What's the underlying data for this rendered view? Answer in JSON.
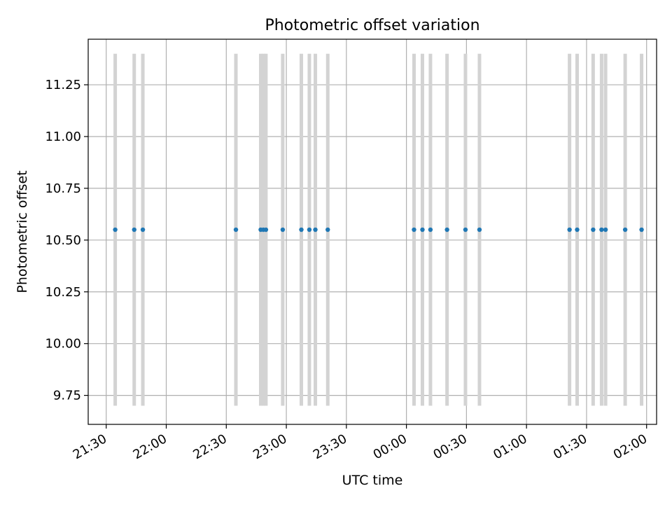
{
  "chart_data": {
    "type": "scatter",
    "title": "Photometric offset variation",
    "xlabel": "UTC time",
    "ylabel": "Photometric offset",
    "x_start": "21:21",
    "x_end": "02:05",
    "xlim": [
      -9,
      275
    ],
    "ylim": [
      9.61,
      11.47
    ],
    "grid": true,
    "x_ticks": [
      {
        "t": 0,
        "label": "21:30"
      },
      {
        "t": 30,
        "label": "22:00"
      },
      {
        "t": 60,
        "label": "22:30"
      },
      {
        "t": 90,
        "label": "23:00"
      },
      {
        "t": 120,
        "label": "23:30"
      },
      {
        "t": 150,
        "label": "00:00"
      },
      {
        "t": 180,
        "label": "00:30"
      },
      {
        "t": 210,
        "label": "01:00"
      },
      {
        "t": 240,
        "label": "01:30"
      },
      {
        "t": 270,
        "label": "02:00"
      }
    ],
    "y_ticks": [
      {
        "v": 9.75,
        "label": "9.75"
      },
      {
        "v": 10.0,
        "label": "10.00"
      },
      {
        "v": 10.25,
        "label": "10.25"
      },
      {
        "v": 10.5,
        "label": "10.50"
      },
      {
        "v": 10.75,
        "label": "10.75"
      },
      {
        "v": 11.0,
        "label": "11.00"
      },
      {
        "v": 11.25,
        "label": "11.25"
      }
    ],
    "series": [
      {
        "color": "#1f77b4",
        "x": [
          4.5,
          14,
          18.3,
          64.8,
          77.2,
          78.5,
          79.8,
          88.2,
          97.5,
          101.5,
          104.5,
          110.7,
          153.8,
          158,
          162,
          170.3,
          179.5,
          186.5,
          231.5,
          235.3,
          243.3,
          247.5,
          249.5,
          259.3,
          267.5
        ],
        "y": [
          10.55,
          10.55,
          10.55,
          10.55,
          10.55,
          10.55,
          10.55,
          10.55,
          10.55,
          10.55,
          10.55,
          10.55,
          10.55,
          10.55,
          10.55,
          10.55,
          10.55,
          10.55,
          10.55,
          10.55,
          10.55,
          10.55,
          10.55,
          10.55,
          10.55
        ],
        "error_low": [
          9.7,
          9.7,
          9.7,
          9.7,
          9.7,
          9.7,
          9.7,
          9.7,
          9.7,
          9.7,
          9.7,
          9.7,
          9.7,
          9.7,
          9.7,
          9.7,
          9.7,
          9.7,
          9.7,
          9.7,
          9.7,
          9.7,
          9.7,
          9.7,
          9.7
        ],
        "error_high": [
          11.4,
          11.4,
          11.4,
          11.4,
          11.4,
          11.4,
          11.4,
          11.4,
          11.4,
          11.4,
          11.4,
          11.4,
          11.4,
          11.4,
          11.4,
          11.4,
          11.4,
          11.4,
          11.4,
          11.4,
          11.4,
          11.4,
          11.4,
          11.4,
          11.4
        ],
        "error_color": "#d3d3d3"
      }
    ]
  }
}
